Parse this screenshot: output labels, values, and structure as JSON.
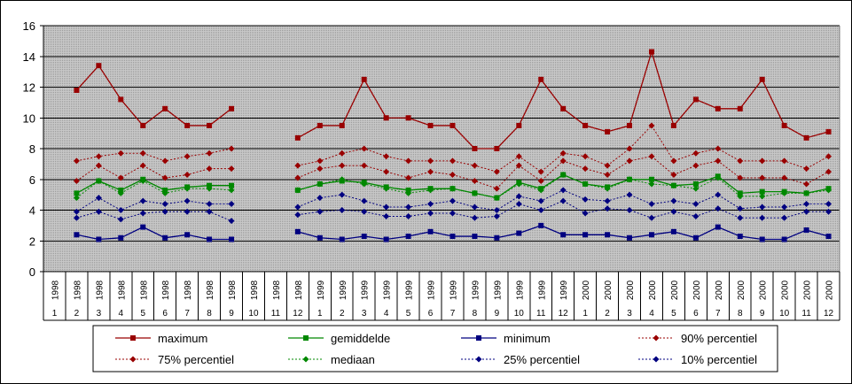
{
  "chart_data": {
    "type": "line",
    "x_years": [
      "1998",
      "1998",
      "1998",
      "1998",
      "1998",
      "1998",
      "1998",
      "1998",
      "1998",
      "1998",
      "1998",
      "1998",
      "1999",
      "1999",
      "1999",
      "1999",
      "1999",
      "1999",
      "1999",
      "1999",
      "1999",
      "1999",
      "1999",
      "1999",
      "2000",
      "2000",
      "2000",
      "2000",
      "2000",
      "2000",
      "2000",
      "2000",
      "2000",
      "2000",
      "2000",
      "2000"
    ],
    "x_months": [
      "1",
      "2",
      "3",
      "4",
      "5",
      "6",
      "7",
      "8",
      "9",
      "10",
      "11",
      "12",
      "1",
      "2",
      "3",
      "4",
      "5",
      "6",
      "7",
      "8",
      "9",
      "10",
      "11",
      "12",
      "1",
      "2",
      "3",
      "4",
      "5",
      "6",
      "7",
      "8",
      "9",
      "10",
      "11",
      "12"
    ],
    "ylim": [
      0,
      16
    ],
    "yticks": [
      0,
      2,
      4,
      6,
      8,
      10,
      12,
      14,
      16
    ],
    "grid": true,
    "legend_position": "bottom",
    "series": [
      {
        "name": "maximum",
        "color": "#990000",
        "dash": false,
        "marker": "square",
        "values": [
          null,
          11.8,
          13.4,
          11.2,
          9.5,
          10.6,
          9.5,
          9.5,
          10.6,
          null,
          null,
          8.7,
          9.5,
          9.5,
          12.5,
          10.0,
          10.0,
          9.5,
          9.5,
          8.0,
          8.0,
          9.5,
          12.5,
          10.6,
          9.5,
          9.1,
          9.5,
          14.3,
          9.5,
          11.2,
          10.6,
          10.6,
          12.5,
          9.5,
          8.7,
          9.1
        ]
      },
      {
        "name": "gemiddelde",
        "color": "#008800",
        "dash": false,
        "marker": "square",
        "values": [
          null,
          5.1,
          5.9,
          5.3,
          6.0,
          5.3,
          5.5,
          5.6,
          5.6,
          null,
          null,
          5.3,
          5.7,
          5.9,
          5.8,
          5.5,
          5.3,
          5.4,
          5.4,
          5.1,
          4.8,
          5.8,
          5.4,
          6.3,
          5.7,
          5.5,
          6.0,
          6.0,
          5.6,
          5.7,
          6.2,
          5.1,
          5.2,
          5.2,
          5.1,
          5.4
        ]
      },
      {
        "name": "minimum",
        "color": "#000080",
        "dash": false,
        "marker": "square",
        "values": [
          null,
          2.4,
          2.1,
          2.2,
          2.9,
          2.2,
          2.4,
          2.1,
          2.1,
          null,
          null,
          2.6,
          2.2,
          2.1,
          2.3,
          2.1,
          2.3,
          2.6,
          2.3,
          2.3,
          2.2,
          2.5,
          3.0,
          2.4,
          2.4,
          2.4,
          2.2,
          2.4,
          2.6,
          2.2,
          2.9,
          2.3,
          2.1,
          2.1,
          2.7,
          2.3
        ]
      },
      {
        "name": "90% percentiel",
        "color": "#990000",
        "dash": true,
        "marker": "diamond",
        "values": [
          null,
          7.2,
          7.5,
          7.7,
          7.7,
          7.2,
          7.5,
          7.7,
          8.0,
          null,
          null,
          6.9,
          7.2,
          7.7,
          8.0,
          7.5,
          7.2,
          7.2,
          7.2,
          6.9,
          6.5,
          7.5,
          6.5,
          7.7,
          7.5,
          6.9,
          8.0,
          9.5,
          7.2,
          7.7,
          8.0,
          7.2,
          7.2,
          7.2,
          6.7,
          7.5
        ]
      },
      {
        "name": "75% percentiel",
        "color": "#990000",
        "dash": true,
        "marker": "diamond",
        "values": [
          null,
          5.9,
          6.9,
          6.1,
          6.9,
          6.1,
          6.3,
          6.7,
          6.7,
          null,
          null,
          6.1,
          6.7,
          6.9,
          6.9,
          6.5,
          6.1,
          6.5,
          6.3,
          5.9,
          5.4,
          6.9,
          5.9,
          7.2,
          6.7,
          6.3,
          7.2,
          7.5,
          6.3,
          6.9,
          7.2,
          6.1,
          6.1,
          6.1,
          5.7,
          6.5
        ]
      },
      {
        "name": "mediaan",
        "color": "#008800",
        "dash": true,
        "marker": "diamond",
        "values": [
          null,
          4.8,
          5.9,
          5.1,
          5.9,
          5.1,
          5.4,
          5.4,
          5.3,
          null,
          null,
          5.3,
          5.7,
          6.0,
          5.7,
          5.4,
          5.1,
          5.3,
          5.4,
          5.1,
          4.8,
          5.7,
          5.3,
          6.3,
          5.7,
          5.4,
          6.0,
          5.7,
          5.6,
          5.4,
          6.1,
          4.9,
          4.9,
          5.1,
          5.1,
          5.3
        ]
      },
      {
        "name": "25% percentiel",
        "color": "#000080",
        "dash": true,
        "marker": "diamond",
        "values": [
          null,
          3.9,
          4.8,
          4.0,
          4.6,
          4.4,
          4.6,
          4.4,
          4.4,
          null,
          null,
          4.2,
          4.8,
          5.0,
          4.6,
          4.2,
          4.2,
          4.4,
          4.6,
          4.2,
          4.0,
          4.9,
          4.6,
          5.3,
          4.7,
          4.6,
          5.0,
          4.4,
          4.6,
          4.4,
          5.0,
          4.1,
          4.2,
          4.2,
          4.4,
          4.4
        ]
      },
      {
        "name": "10% percentiel",
        "color": "#000080",
        "dash": true,
        "marker": "diamond",
        "values": [
          null,
          3.5,
          3.9,
          3.4,
          3.8,
          3.9,
          3.9,
          3.9,
          3.3,
          null,
          null,
          3.7,
          3.9,
          4.0,
          3.9,
          3.6,
          3.6,
          3.8,
          3.8,
          3.5,
          3.6,
          4.4,
          4.0,
          4.6,
          3.8,
          4.1,
          4.0,
          3.5,
          3.9,
          3.6,
          4.1,
          3.5,
          3.5,
          3.5,
          3.9,
          3.9
        ]
      }
    ]
  }
}
